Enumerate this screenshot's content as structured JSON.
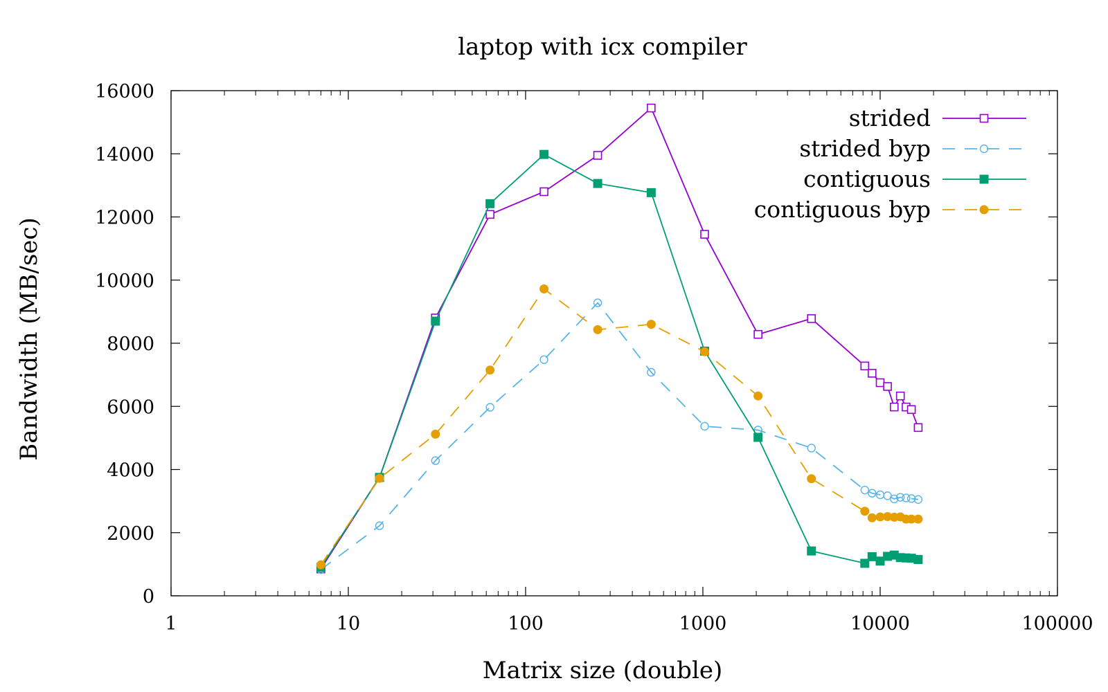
{
  "chart_data": {
    "type": "line",
    "title": "laptop with icx compiler",
    "xlabel": "Matrix size (double)",
    "ylabel": "Bandwidth (MB/sec)",
    "xscale": "log",
    "xlim": [
      1,
      100000
    ],
    "ylim": [
      0,
      16000
    ],
    "xticks": [
      1,
      10,
      100,
      1000,
      10000,
      100000
    ],
    "xtick_labels": [
      "1",
      "10",
      "100",
      "1000",
      "10000",
      "100000"
    ],
    "yticks": [
      0,
      2000,
      4000,
      6000,
      8000,
      10000,
      12000,
      14000,
      16000
    ],
    "ytick_labels": [
      "0",
      "2000",
      "4000",
      "6000",
      "8000",
      "10000",
      "12000",
      "14000",
      "16000"
    ],
    "grid": false,
    "legend_position": "top-right",
    "series": [
      {
        "name": "strided",
        "color": "#9400d3",
        "dash": "solid",
        "marker": "open-square",
        "x": [
          7,
          15,
          31,
          63,
          127,
          255,
          511,
          1023,
          2047,
          4095,
          8191,
          9000,
          10000,
          11000,
          12000,
          13000,
          14000,
          15000,
          16383
        ],
        "y": [
          850,
          3750,
          8800,
          12080,
          12800,
          13950,
          15450,
          11450,
          8280,
          8780,
          7280,
          7050,
          6750,
          6630,
          5980,
          6330,
          5980,
          5900,
          5330
        ]
      },
      {
        "name": "strided byp",
        "color": "#56b4e9",
        "dash": "dashed",
        "marker": "open-circle",
        "x": [
          7,
          15,
          31,
          63,
          127,
          255,
          511,
          1023,
          2047,
          4095,
          8191,
          9000,
          10000,
          11000,
          12000,
          13000,
          14000,
          15000,
          16383
        ],
        "y": [
          830,
          2220,
          4280,
          5970,
          7480,
          9280,
          7080,
          5370,
          5250,
          4680,
          3350,
          3250,
          3200,
          3170,
          3070,
          3120,
          3100,
          3080,
          3050
        ]
      },
      {
        "name": "contiguous",
        "color": "#009e73",
        "dash": "solid",
        "marker": "filled-square",
        "x": [
          7,
          15,
          31,
          63,
          127,
          255,
          511,
          1023,
          2047,
          4095,
          8191,
          9000,
          10000,
          11000,
          12000,
          13000,
          14000,
          15000,
          16383
        ],
        "y": [
          900,
          3750,
          8700,
          12420,
          13980,
          13060,
          12770,
          7750,
          5020,
          1420,
          1030,
          1240,
          1100,
          1250,
          1290,
          1210,
          1200,
          1190,
          1150
        ]
      },
      {
        "name": "contiguous byp",
        "color": "#e69f00",
        "dash": "dashed",
        "marker": "filled-circle",
        "x": [
          7,
          15,
          31,
          63,
          127,
          255,
          511,
          1023,
          2047,
          4095,
          8191,
          9000,
          10000,
          11000,
          12000,
          13000,
          14000,
          15000,
          16383
        ],
        "y": [
          980,
          3720,
          5120,
          7150,
          9720,
          8430,
          8600,
          7730,
          6330,
          3710,
          2680,
          2470,
          2500,
          2510,
          2490,
          2500,
          2430,
          2430,
          2430
        ]
      }
    ]
  }
}
